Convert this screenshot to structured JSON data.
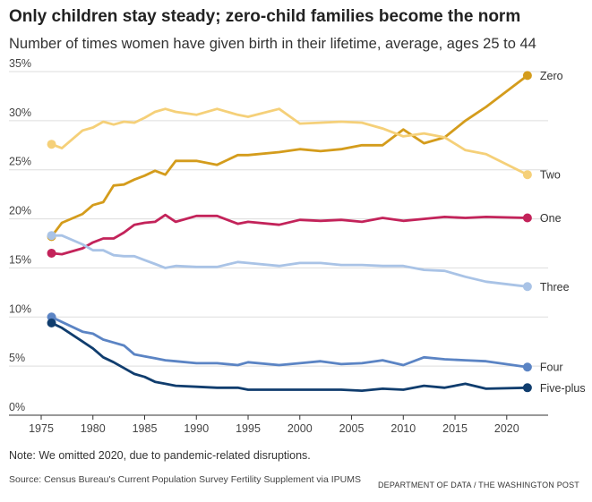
{
  "header": {
    "title": "Only children stay steady; zero-child families become the norm",
    "subtitle": "Number of times women have given birth in their lifetime, average, ages 25 to 44"
  },
  "footer": {
    "note": "Note: We omitted 2020, due to pandemic-related disruptions.",
    "source": "Source: Census Bureau's Current Population Survey Fertility Supplement via IPUMS",
    "credit": "DEPARTMENT OF DATA / THE WASHINGTON POST"
  },
  "chart_data": {
    "type": "line",
    "title": "Only children stay steady; zero-child families become the norm",
    "subtitle": "Number of times women have given birth in their lifetime, average, ages 25 to 44",
    "x": [
      1976,
      1977,
      1979,
      1980,
      1981,
      1982,
      1983,
      1984,
      1985,
      1986,
      1987,
      1988,
      1990,
      1992,
      1994,
      1995,
      1998,
      2000,
      2002,
      2004,
      2006,
      2008,
      2010,
      2012,
      2014,
      2016,
      2018,
      2022
    ],
    "xlim": [
      1975,
      2024
    ],
    "ylim": [
      0,
      35
    ],
    "xticks": [
      1975,
      1980,
      1985,
      1990,
      1995,
      2000,
      2005,
      2010,
      2015,
      2020
    ],
    "xtick_labels": [
      "1975",
      "1980",
      "1985",
      "1990",
      "1995",
      "2000",
      "2005",
      "2010",
      "2015",
      "2020"
    ],
    "yticks": [
      0,
      5,
      10,
      15,
      20,
      25,
      30,
      35
    ],
    "ytick_labels": [
      "0%",
      "5%",
      "10%",
      "15%",
      "20%",
      "25%",
      "30%",
      "35%"
    ],
    "grid": true,
    "legend": "direct-labels-right",
    "series": [
      {
        "name": "Zero",
        "color": "#d49c1c",
        "values": [
          18.2,
          19.6,
          20.5,
          21.4,
          21.7,
          23.4,
          23.5,
          24.0,
          24.4,
          24.9,
          24.5,
          25.9,
          25.9,
          25.5,
          26.5,
          26.5,
          26.8,
          27.1,
          26.9,
          27.1,
          27.5,
          27.5,
          29.1,
          27.7,
          28.3,
          30.0,
          31.4,
          34.6
        ]
      },
      {
        "name": "Two",
        "color": "#f5d079",
        "values": [
          27.6,
          27.2,
          29.0,
          29.3,
          29.9,
          29.6,
          29.9,
          29.8,
          30.3,
          30.9,
          31.2,
          30.9,
          30.6,
          31.2,
          30.6,
          30.4,
          31.2,
          29.7,
          29.8,
          29.9,
          29.8,
          29.2,
          28.4,
          28.7,
          28.3,
          27.0,
          26.6,
          24.5
        ]
      },
      {
        "name": "One",
        "color": "#c3235a",
        "values": [
          16.5,
          16.4,
          17.0,
          17.6,
          18.0,
          18.0,
          18.6,
          19.4,
          19.6,
          19.7,
          20.4,
          19.7,
          20.3,
          20.3,
          19.5,
          19.7,
          19.4,
          19.9,
          19.8,
          19.9,
          19.7,
          20.1,
          19.8,
          20.0,
          20.2,
          20.1,
          20.2,
          20.1
        ]
      },
      {
        "name": "Three",
        "color": "#a9c3e6",
        "values": [
          18.3,
          18.3,
          17.4,
          16.8,
          16.8,
          16.3,
          16.2,
          16.2,
          15.8,
          15.4,
          15.0,
          15.2,
          15.1,
          15.1,
          15.6,
          15.5,
          15.2,
          15.5,
          15.5,
          15.3,
          15.3,
          15.2,
          15.2,
          14.8,
          14.7,
          14.1,
          13.6,
          13.1
        ]
      },
      {
        "name": "Four",
        "color": "#5b84c4",
        "values": [
          10.0,
          9.5,
          8.5,
          8.3,
          7.7,
          7.4,
          7.1,
          6.2,
          6.0,
          5.8,
          5.6,
          5.5,
          5.3,
          5.3,
          5.1,
          5.4,
          5.1,
          5.3,
          5.5,
          5.2,
          5.3,
          5.6,
          5.1,
          5.9,
          5.7,
          5.6,
          5.5,
          4.9
        ]
      },
      {
        "name": "Five-plus",
        "color": "#103d6e",
        "values": [
          9.4,
          8.9,
          7.5,
          6.8,
          5.9,
          5.4,
          4.8,
          4.2,
          3.9,
          3.4,
          3.2,
          3.0,
          2.9,
          2.8,
          2.8,
          2.6,
          2.6,
          2.6,
          2.6,
          2.6,
          2.5,
          2.7,
          2.6,
          3.0,
          2.8,
          3.2,
          2.7,
          2.8
        ]
      }
    ]
  }
}
